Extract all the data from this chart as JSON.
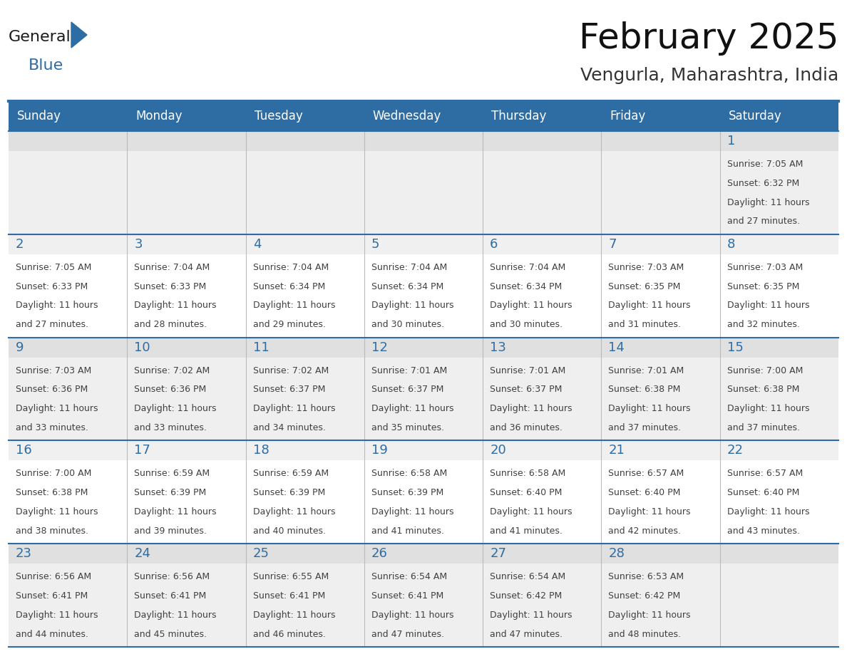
{
  "title": "February 2025",
  "subtitle": "Vengurla, Maharashtra, India",
  "header_color": "#2E6DA4",
  "header_text_color": "#FFFFFF",
  "row1_bg": "#EFEFEF",
  "row2_bg": "#FFFFFF",
  "day_number_color": "#2E6DA4",
  "text_color": "#404040",
  "border_color": "#2E6DA4",
  "days_of_week": [
    "Sunday",
    "Monday",
    "Tuesday",
    "Wednesday",
    "Thursday",
    "Friday",
    "Saturday"
  ],
  "calendar": [
    [
      null,
      null,
      null,
      null,
      null,
      null,
      {
        "day": "1",
        "sunrise": "7:05 AM",
        "sunset": "6:32 PM",
        "daylight_line1": "Daylight: 11 hours",
        "daylight_line2": "and 27 minutes."
      }
    ],
    [
      {
        "day": "2",
        "sunrise": "7:05 AM",
        "sunset": "6:33 PM",
        "daylight_line1": "Daylight: 11 hours",
        "daylight_line2": "and 27 minutes."
      },
      {
        "day": "3",
        "sunrise": "7:04 AM",
        "sunset": "6:33 PM",
        "daylight_line1": "Daylight: 11 hours",
        "daylight_line2": "and 28 minutes."
      },
      {
        "day": "4",
        "sunrise": "7:04 AM",
        "sunset": "6:34 PM",
        "daylight_line1": "Daylight: 11 hours",
        "daylight_line2": "and 29 minutes."
      },
      {
        "day": "5",
        "sunrise": "7:04 AM",
        "sunset": "6:34 PM",
        "daylight_line1": "Daylight: 11 hours",
        "daylight_line2": "and 30 minutes."
      },
      {
        "day": "6",
        "sunrise": "7:04 AM",
        "sunset": "6:34 PM",
        "daylight_line1": "Daylight: 11 hours",
        "daylight_line2": "and 30 minutes."
      },
      {
        "day": "7",
        "sunrise": "7:03 AM",
        "sunset": "6:35 PM",
        "daylight_line1": "Daylight: 11 hours",
        "daylight_line2": "and 31 minutes."
      },
      {
        "day": "8",
        "sunrise": "7:03 AM",
        "sunset": "6:35 PM",
        "daylight_line1": "Daylight: 11 hours",
        "daylight_line2": "and 32 minutes."
      }
    ],
    [
      {
        "day": "9",
        "sunrise": "7:03 AM",
        "sunset": "6:36 PM",
        "daylight_line1": "Daylight: 11 hours",
        "daylight_line2": "and 33 minutes."
      },
      {
        "day": "10",
        "sunrise": "7:02 AM",
        "sunset": "6:36 PM",
        "daylight_line1": "Daylight: 11 hours",
        "daylight_line2": "and 33 minutes."
      },
      {
        "day": "11",
        "sunrise": "7:02 AM",
        "sunset": "6:37 PM",
        "daylight_line1": "Daylight: 11 hours",
        "daylight_line2": "and 34 minutes."
      },
      {
        "day": "12",
        "sunrise": "7:01 AM",
        "sunset": "6:37 PM",
        "daylight_line1": "Daylight: 11 hours",
        "daylight_line2": "and 35 minutes."
      },
      {
        "day": "13",
        "sunrise": "7:01 AM",
        "sunset": "6:37 PM",
        "daylight_line1": "Daylight: 11 hours",
        "daylight_line2": "and 36 minutes."
      },
      {
        "day": "14",
        "sunrise": "7:01 AM",
        "sunset": "6:38 PM",
        "daylight_line1": "Daylight: 11 hours",
        "daylight_line2": "and 37 minutes."
      },
      {
        "day": "15",
        "sunrise": "7:00 AM",
        "sunset": "6:38 PM",
        "daylight_line1": "Daylight: 11 hours",
        "daylight_line2": "and 37 minutes."
      }
    ],
    [
      {
        "day": "16",
        "sunrise": "7:00 AM",
        "sunset": "6:38 PM",
        "daylight_line1": "Daylight: 11 hours",
        "daylight_line2": "and 38 minutes."
      },
      {
        "day": "17",
        "sunrise": "6:59 AM",
        "sunset": "6:39 PM",
        "daylight_line1": "Daylight: 11 hours",
        "daylight_line2": "and 39 minutes."
      },
      {
        "day": "18",
        "sunrise": "6:59 AM",
        "sunset": "6:39 PM",
        "daylight_line1": "Daylight: 11 hours",
        "daylight_line2": "and 40 minutes."
      },
      {
        "day": "19",
        "sunrise": "6:58 AM",
        "sunset": "6:39 PM",
        "daylight_line1": "Daylight: 11 hours",
        "daylight_line2": "and 41 minutes."
      },
      {
        "day": "20",
        "sunrise": "6:58 AM",
        "sunset": "6:40 PM",
        "daylight_line1": "Daylight: 11 hours",
        "daylight_line2": "and 41 minutes."
      },
      {
        "day": "21",
        "sunrise": "6:57 AM",
        "sunset": "6:40 PM",
        "daylight_line1": "Daylight: 11 hours",
        "daylight_line2": "and 42 minutes."
      },
      {
        "day": "22",
        "sunrise": "6:57 AM",
        "sunset": "6:40 PM",
        "daylight_line1": "Daylight: 11 hours",
        "daylight_line2": "and 43 minutes."
      }
    ],
    [
      {
        "day": "23",
        "sunrise": "6:56 AM",
        "sunset": "6:41 PM",
        "daylight_line1": "Daylight: 11 hours",
        "daylight_line2": "and 44 minutes."
      },
      {
        "day": "24",
        "sunrise": "6:56 AM",
        "sunset": "6:41 PM",
        "daylight_line1": "Daylight: 11 hours",
        "daylight_line2": "and 45 minutes."
      },
      {
        "day": "25",
        "sunrise": "6:55 AM",
        "sunset": "6:41 PM",
        "daylight_line1": "Daylight: 11 hours",
        "daylight_line2": "and 46 minutes."
      },
      {
        "day": "26",
        "sunrise": "6:54 AM",
        "sunset": "6:41 PM",
        "daylight_line1": "Daylight: 11 hours",
        "daylight_line2": "and 47 minutes."
      },
      {
        "day": "27",
        "sunrise": "6:54 AM",
        "sunset": "6:42 PM",
        "daylight_line1": "Daylight: 11 hours",
        "daylight_line2": "and 47 minutes."
      },
      {
        "day": "28",
        "sunrise": "6:53 AM",
        "sunset": "6:42 PM",
        "daylight_line1": "Daylight: 11 hours",
        "daylight_line2": "and 48 minutes."
      },
      null
    ]
  ],
  "logo_text_general": "General",
  "logo_text_blue": "Blue",
  "logo_color_general": "#1a1a1a",
  "logo_color_blue": "#2E6DA4",
  "logo_triangle_color": "#2E6DA4",
  "title_fontsize": 36,
  "subtitle_fontsize": 18,
  "header_fontsize": 12,
  "day_num_fontsize": 13,
  "cell_fontsize": 9
}
